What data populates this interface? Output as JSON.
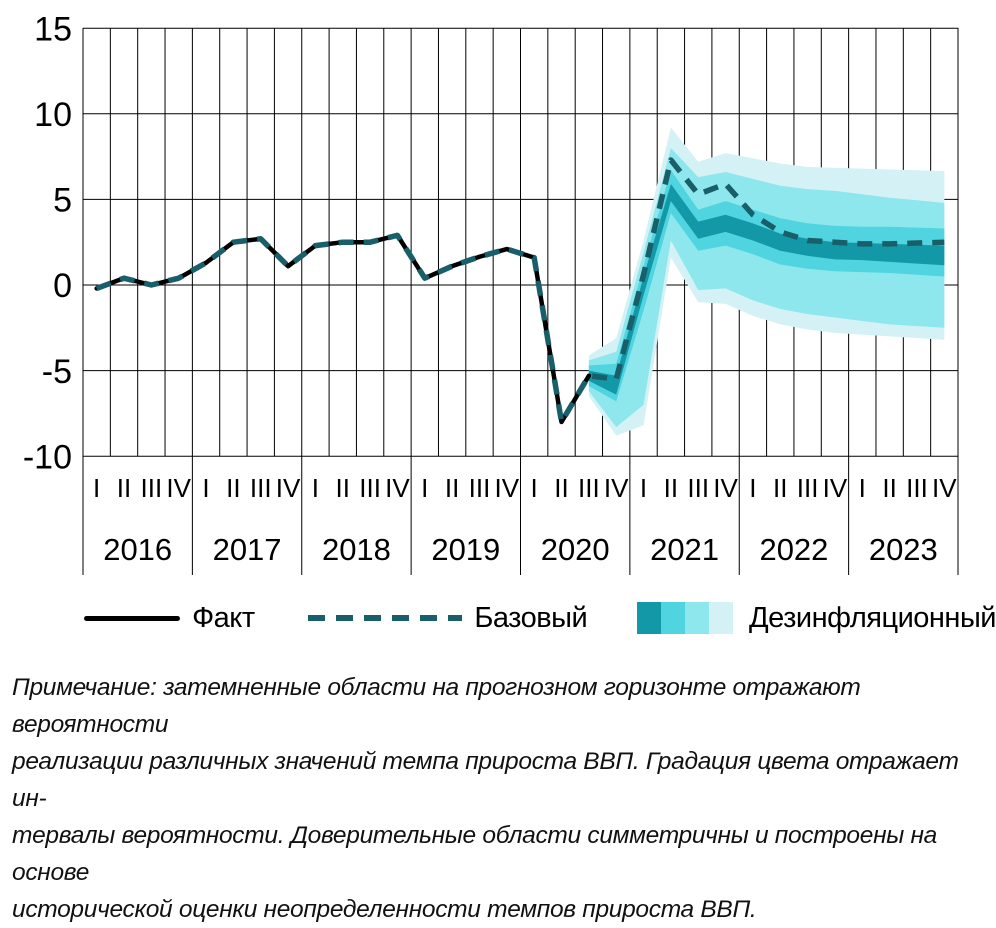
{
  "chart_data": {
    "type": "line",
    "title": "",
    "ylabel": "",
    "xlabel": "",
    "ylim": [
      -10,
      15
    ],
    "y_ticks": [
      15,
      10,
      5,
      0,
      -5,
      -10
    ],
    "grid": true,
    "years": [
      "2016",
      "2017",
      "2018",
      "2019",
      "2020",
      "2021",
      "2022",
      "2023"
    ],
    "quarter_labels": [
      "I",
      "II",
      "III",
      "IV"
    ],
    "series": [
      {
        "name": "Факт",
        "style": "solid",
        "color": "#000000",
        "start_index": 0,
        "values": [
          -0.2,
          0.4,
          0.0,
          0.4,
          1.3,
          2.5,
          2.7,
          1.1,
          2.3,
          2.5,
          2.5,
          2.9,
          0.4,
          1.1,
          1.65,
          2.1,
          1.6,
          -8.0,
          -5.3
        ]
      },
      {
        "name": "Базовый",
        "style": "dashed",
        "color": "#185f69",
        "start_index": 18,
        "values": [
          -5.3,
          -5.5,
          0.6,
          7.3,
          5.3,
          5.9,
          4.1,
          3.1,
          2.6,
          2.5,
          2.4,
          2.4,
          2.45,
          2.5
        ]
      }
    ],
    "fan": {
      "name": "Дезинфляционный",
      "start_index": 18,
      "median": [
        -5.3,
        -5.9,
        0.0,
        5.4,
        3.2,
        3.6,
        3.1,
        2.5,
        2.2,
        2.0,
        1.95,
        1.9,
        1.8,
        1.7
      ],
      "bands": [
        {
          "level": "outer",
          "color": "#d4f2f5",
          "top": [
            -4.1,
            -3.1,
            2.6,
            9.2,
            7.2,
            7.7,
            7.4,
            7.1,
            6.9,
            6.85,
            6.8,
            6.75,
            6.7,
            6.65
          ],
          "bottom": [
            -6.5,
            -8.8,
            -8.2,
            1.6,
            -1.0,
            -1.1,
            -1.8,
            -2.3,
            -2.6,
            -2.8,
            -2.9,
            -3.0,
            -3.1,
            -3.2
          ]
        },
        {
          "level": "light",
          "color": "#8ee7ed",
          "top": [
            -4.4,
            -3.9,
            1.9,
            8.0,
            6.3,
            6.6,
            6.2,
            5.8,
            5.6,
            5.5,
            5.3,
            5.1,
            4.95,
            4.8
          ],
          "bottom": [
            -6.2,
            -8.3,
            -7.0,
            2.6,
            -0.3,
            -0.2,
            -0.9,
            -1.4,
            -1.7,
            -1.9,
            -2.1,
            -2.3,
            -2.4,
            -2.5
          ]
        },
        {
          "level": "medium",
          "color": "#4fd4e0",
          "top": [
            -4.7,
            -4.6,
            1.1,
            6.7,
            4.4,
            4.9,
            4.4,
            3.9,
            3.6,
            3.45,
            3.4,
            3.4,
            3.35,
            3.3
          ],
          "bottom": [
            -5.9,
            -6.8,
            -1.5,
            4.2,
            2.0,
            2.3,
            1.8,
            1.2,
            0.95,
            0.8,
            0.75,
            0.7,
            0.6,
            0.5
          ]
        },
        {
          "level": "dark",
          "color": "#1398a8",
          "top": [
            -5.0,
            -5.3,
            0.5,
            5.9,
            3.7,
            4.1,
            3.6,
            3.0,
            2.7,
            2.5,
            2.45,
            2.4,
            2.35,
            2.3
          ],
          "bottom": [
            -5.6,
            -6.4,
            -0.6,
            4.9,
            2.7,
            3.1,
            2.6,
            2.0,
            1.7,
            1.5,
            1.45,
            1.35,
            1.25,
            1.15
          ]
        }
      ]
    }
  },
  "legend": {
    "fact_label": "Факт",
    "baseline_label": "Базовый",
    "scenario_label": "Дезинфляционный"
  },
  "note": {
    "lines": [
      "Примечание: затемненные области на прогнозном горизонте отражают вероятности",
      "реализации различных значений темпа прироста ВВП. Градация цвета отражает ин-",
      "тервалы вероятности. Доверительные области симметричны и построены на основе",
      "исторической оценки неопределенности темпов прироста ВВП."
    ]
  }
}
